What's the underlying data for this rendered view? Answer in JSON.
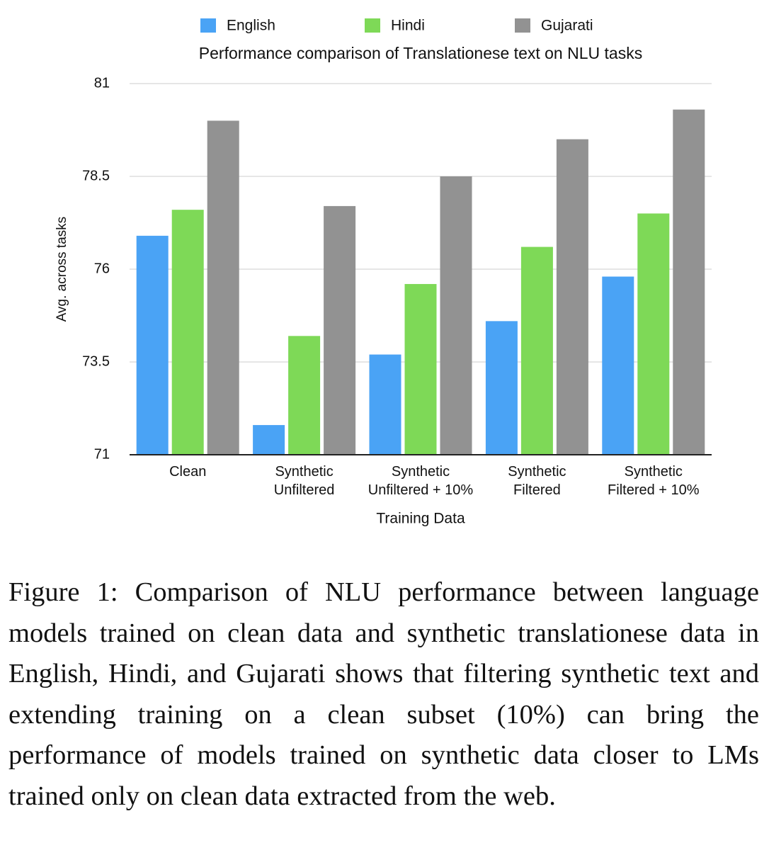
{
  "chart_data": {
    "type": "bar",
    "title": "Performance comparison of Translationese text on NLU tasks",
    "x_label": "Training Data",
    "y_label": "Avg. across tasks",
    "categories": [
      "Clean",
      "Synthetic\nUnfiltered",
      "Synthetic\nUnfiltered + 10%",
      "Synthetic\nFiltered",
      "Synthetic\nFiltered + 10%"
    ],
    "series": [
      {
        "name": "English",
        "color": "#4aa3f5",
        "values": [
          76.9,
          71.8,
          73.7,
          74.6,
          75.8
        ]
      },
      {
        "name": "Hindi",
        "color": "#7ed957",
        "values": [
          77.6,
          74.2,
          75.6,
          76.6,
          77.5
        ]
      },
      {
        "name": "Gujarati",
        "color": "#929292",
        "values": [
          80.0,
          77.7,
          78.5,
          79.5,
          80.3
        ]
      }
    ],
    "ylim": [
      71,
      81
    ],
    "yticks": [
      71,
      73.5,
      76,
      78.5,
      81
    ],
    "grid": true,
    "legend": "top"
  },
  "caption": "Figure 1: Comparison of NLU performance between language models trained on clean data and synthetic translationese data in English, Hindi, and Gujarati shows that filtering synthetic text and extending training on a clean subset (10%) can bring the performance of models trained on synthetic data closer to LMs trained only on clean data extracted from the web."
}
